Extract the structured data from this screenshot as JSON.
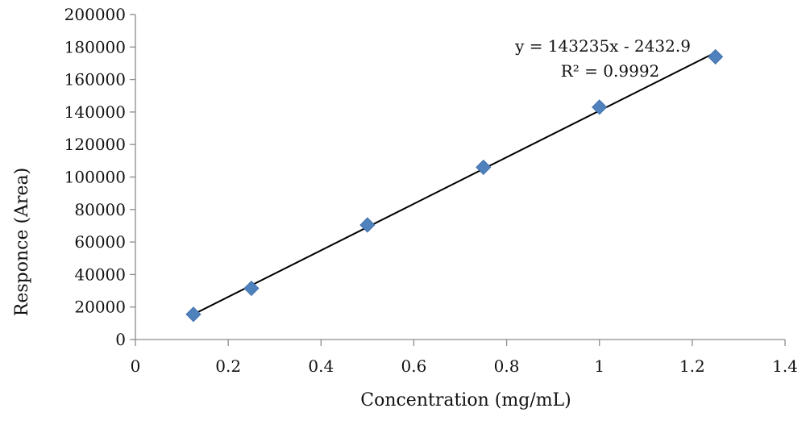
{
  "chart_data": {
    "type": "scatter",
    "title": "",
    "xlabel": "Concentration (mg/mL)",
    "ylabel": "Responce (Area)",
    "xlim": [
      0,
      1.4
    ],
    "ylim": [
      0,
      200000
    ],
    "x_ticks": [
      "0",
      "0.2",
      "0.4",
      "0.6",
      "0.8",
      "1",
      "1.2",
      "1.4"
    ],
    "y_ticks": [
      "0",
      "20000",
      "40000",
      "60000",
      "80000",
      "100000",
      "120000",
      "140000",
      "160000",
      "180000",
      "200000"
    ],
    "grid": false,
    "legend": "none",
    "marker_color": "#4F81BD",
    "marker_shape": "diamond",
    "series": [
      {
        "x": [
          0.125,
          0.25,
          0.5,
          0.75,
          1.0,
          1.25
        ],
        "y": [
          15500,
          31500,
          70500,
          106000,
          143000,
          174000
        ]
      }
    ],
    "trendline": {
      "slope": 143235,
      "intercept": -2432.9,
      "x_range": [
        0.125,
        1.25
      ],
      "color": "#000000"
    },
    "annotations": {
      "equation": "y = 143235x - 2432.9",
      "r2": "R² = 0.9992"
    }
  }
}
